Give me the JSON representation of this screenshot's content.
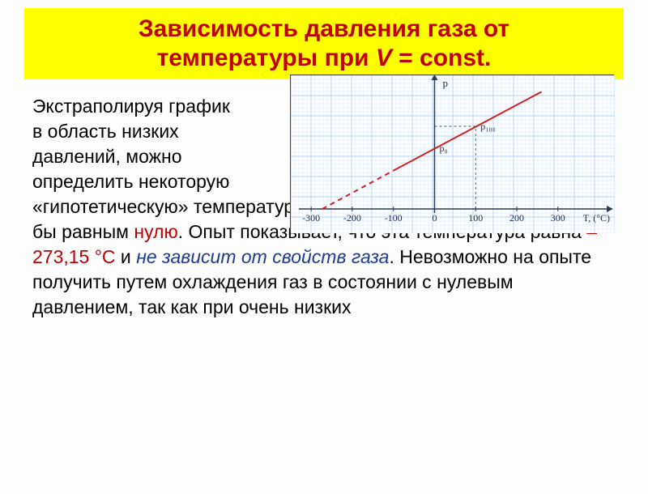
{
  "title": {
    "line1": "Зависимость давления газа от",
    "line2_a": "температуры при ",
    "line2_v": "V",
    "line2_b": " = const."
  },
  "text": {
    "p1a": "Экстраполируя график",
    "p1b": " в область низких",
    "p1c": "давлений, можно",
    "p1d": " определить некоторую",
    "p2a": " «гипотетическую» температуру, при которой давление газа стало бы равным ",
    "p2b": "нулю",
    "p2c": ". Опыт показывает, что эта температура равна ",
    "p2d": "– 273,15 °С",
    "p2e": " и ",
    "p2f": "не зависит от свойств газа",
    "p2g": ". Невозможно на опыте получить путем охлаждения газ в состоянии с нулевым давлением, так как при очень низких"
  },
  "chart": {
    "type": "line",
    "background_color": "#ffffff",
    "grid_minor_color": "#cfe6ff",
    "grid_major_color": "#9fc8f5",
    "axis_color": "#2b3a55",
    "line_color": "#d42020",
    "dash_color": "#d42020",
    "label_color": "#1a2a4a",
    "xlabel": "T, (°C)",
    "ylabel": "p",
    "x_ticks": [
      -300,
      -200,
      -100,
      0,
      100,
      200,
      300
    ],
    "y_labels": [
      "p₀",
      "p₁₀₀"
    ],
    "x_range": [
      -320,
      330
    ],
    "y_range": [
      0,
      120
    ],
    "dash_start_x": -273,
    "solid_start_x": -100,
    "slope_intercept_x": -273,
    "p0_x": 0,
    "p0_y": 58,
    "p100_x": 100,
    "p100_y": 79,
    "line_end_x": 260,
    "line_end_y": 112,
    "line_width": 2,
    "font_size": 12
  }
}
